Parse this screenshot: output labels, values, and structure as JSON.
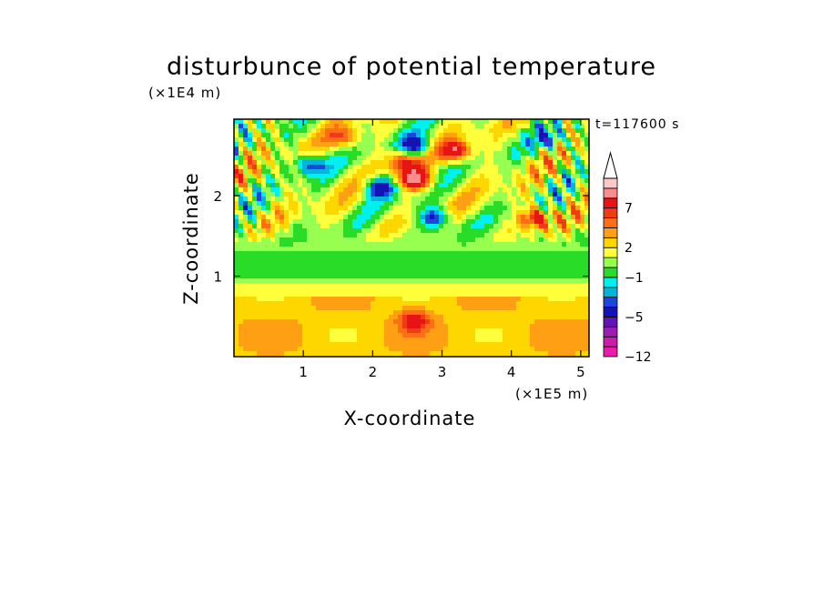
{
  "chart_data": {
    "type": "heatmap",
    "title": "disturbunce of potential temperature",
    "xlabel": "X-coordinate",
    "ylabel": "Z-coordinate",
    "x_unit": "(×1E5 m)",
    "y_unit": "(×1E4 m)",
    "time_label": "t=117600 s",
    "xlim": [
      0,
      5.12
    ],
    "ylim": [
      0,
      2.95
    ],
    "x_ticks": [
      "1",
      "2",
      "3",
      "4",
      "5"
    ],
    "x_tick_values": [
      1,
      2,
      3,
      4,
      5
    ],
    "y_ticks": [
      "1",
      "2"
    ],
    "y_tick_values": [
      1,
      2
    ],
    "colorbar": {
      "levels": [
        -12,
        -11,
        -9,
        -7,
        -5,
        -4,
        -3,
        -2,
        -1,
        0,
        1,
        2,
        3,
        4,
        5,
        7,
        9,
        11,
        13
      ],
      "labeled_levels": [
        "-12",
        "-5",
        "-1",
        "2",
        "7"
      ],
      "labeled_values": [
        -12,
        -5,
        -1,
        2,
        7
      ],
      "colors": [
        "#e61ea6",
        "#c81eaa",
        "#9b1eb4",
        "#6414b4",
        "#1414b4",
        "#1e46dc",
        "#00b4dc",
        "#00f0f0",
        "#28dc28",
        "#96ff50",
        "#ffff3c",
        "#ffd700",
        "#ffa014",
        "#ff6e14",
        "#f03c14",
        "#e61414",
        "#ff8c8c",
        "#ffc8c8",
        "#ffffff"
      ],
      "extend": "max"
    },
    "field_features": [
      {
        "x": 2.6,
        "z": 2.62,
        "value": -6
      },
      {
        "x": 2.45,
        "z": 2.42,
        "value": 5
      },
      {
        "x": 2.62,
        "z": 2.2,
        "value": 8
      },
      {
        "x": 2.1,
        "z": 2.1,
        "value": -6
      },
      {
        "x": 3.2,
        "z": 2.55,
        "value": 7
      },
      {
        "x": 2.9,
        "z": 1.72,
        "value": -6
      },
      {
        "x": 1.6,
        "z": 2.72,
        "value": 4
      },
      {
        "x": 1.1,
        "z": 2.38,
        "value": -5
      },
      {
        "x": 4.35,
        "z": 1.72,
        "value": 6
      },
      {
        "x": 4.55,
        "z": 2.7,
        "value": -4
      },
      {
        "x": 2.6,
        "z": 0.45,
        "value": 4
      }
    ]
  }
}
